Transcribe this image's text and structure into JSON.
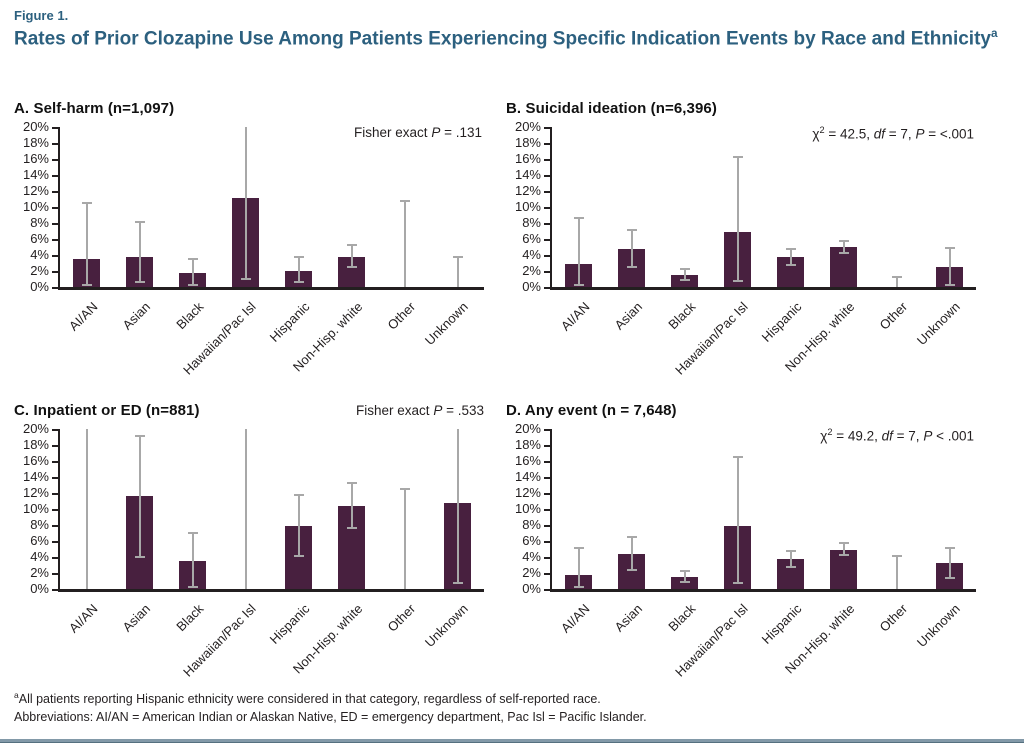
{
  "page": {
    "figure_label": "Figure 1.",
    "title": "Rates of Prior Clozapine Use Among Patients Experiencing Specific Indication Events by Race and Ethnicity",
    "title_sup": "a",
    "footnote_sup": "a",
    "footnote1": "All patients reporting Hispanic ethnicity were considered in that category, regardless of self-reported race.",
    "footnote2": "Abbreviations: AI/AN = American Indian or Alaskan Native, ED = emergency department, Pac Isl = Pacific Islander."
  },
  "colors": {
    "bar": "#48203f",
    "error_bar": "#a8a8a8",
    "title_accent": "#2c607f",
    "axis": "#231f20",
    "bottom_rule": "#8299a8"
  },
  "chart_data": [
    {
      "id": "A",
      "type": "bar",
      "title": "A. Self-harm (n=1,097)",
      "stats_in_header": false,
      "annotation_parts": [
        {
          "t": "Fisher exact  "
        },
        {
          "t": "P",
          "i": true
        },
        {
          "t": " = .131"
        }
      ],
      "categories": [
        "AI/AN",
        "Asian",
        "Black",
        "Hawaiian/Pac Isl",
        "Hispanic",
        "Non-Hisp. white",
        "Other",
        "Unknown"
      ],
      "values": [
        3.5,
        3.7,
        1.7,
        11.1,
        2.0,
        3.8,
        0,
        0
      ],
      "error_low": [
        0.2,
        0.6,
        0.2,
        1.0,
        0.6,
        2.5,
        0,
        0
      ],
      "error_high": [
        10.5,
        8.1,
        3.5,
        20,
        3.8,
        5.2,
        10.8,
        3.8
      ],
      "ylim": [
        0,
        20
      ],
      "y_tick_step": 2,
      "y_tick_suffix": "%"
    },
    {
      "id": "B",
      "type": "bar",
      "title": "B. Suicidal ideation (n=6,396)",
      "stats_in_header": false,
      "annotation_parts": [
        {
          "t": "χ"
        },
        {
          "t": "2",
          "sup": true
        },
        {
          "t": " = 42.5, "
        },
        {
          "t": "df",
          "i": true
        },
        {
          "t": " = 7, "
        },
        {
          "t": "P",
          "i": true
        },
        {
          "t": " = <.001"
        }
      ],
      "categories": [
        "AI/AN",
        "Asian",
        "Black",
        "Hawaiian/Pac Isl",
        "Hispanic",
        "Non-Hisp. white",
        "Other",
        "Unknown"
      ],
      "values": [
        2.9,
        4.7,
        1.5,
        6.9,
        3.7,
        5.0,
        0,
        2.5
      ],
      "error_low": [
        0.3,
        2.5,
        0.9,
        0.8,
        2.7,
        4.2,
        0,
        0.2
      ],
      "error_high": [
        8.6,
        7.1,
        2.3,
        16.2,
        4.8,
        5.8,
        1.2,
        4.9
      ],
      "ylim": [
        0,
        20
      ],
      "y_tick_step": 2,
      "y_tick_suffix": "%"
    },
    {
      "id": "C",
      "type": "bar",
      "title": "C. Inpatient or ED (n=881)",
      "stats_in_header": true,
      "annotation_parts": [
        {
          "t": "Fisher exact  "
        },
        {
          "t": "P",
          "i": true
        },
        {
          "t": " = .533"
        }
      ],
      "categories": [
        "AI/AN",
        "Asian",
        "Black",
        "Hawaiian/Pac Isl",
        "Hispanic",
        "Non-Hisp. white",
        "Other",
        "Unknown"
      ],
      "values": [
        0,
        11.6,
        3.5,
        0,
        7.9,
        10.4,
        0,
        10.8
      ],
      "error_low": [
        0,
        4.0,
        0.2,
        0,
        4.1,
        7.6,
        0,
        0.8
      ],
      "error_high": [
        20,
        19.1,
        7.0,
        20,
        11.7,
        13.3,
        12.5,
        20
      ],
      "ylim": [
        0,
        20
      ],
      "y_tick_step": 2,
      "y_tick_suffix": "%"
    },
    {
      "id": "D",
      "type": "bar",
      "title": "D. Any event (n = 7,648)",
      "stats_in_header": false,
      "annotation_parts": [
        {
          "t": "χ"
        },
        {
          "t": "2",
          "sup": true
        },
        {
          "t": " = 49.2, "
        },
        {
          "t": "df",
          "i": true
        },
        {
          "t": " = 7, "
        },
        {
          "t": "P",
          "i": true
        },
        {
          "t": " < .001"
        }
      ],
      "categories": [
        "AI/AN",
        "Asian",
        "Black",
        "Hawaiian/Pac Isl",
        "Hispanic",
        "Non-Hisp. white",
        "Other",
        "Unknown"
      ],
      "values": [
        1.7,
        4.4,
        1.5,
        7.9,
        3.7,
        4.9,
        0,
        3.2
      ],
      "error_low": [
        0.2,
        2.4,
        0.9,
        0.8,
        2.8,
        4.2,
        0,
        1.4
      ],
      "error_high": [
        5.1,
        6.5,
        2.2,
        16.5,
        4.8,
        5.7,
        4.1,
        5.1
      ],
      "ylim": [
        0,
        20
      ],
      "y_tick_step": 2,
      "y_tick_suffix": "%"
    }
  ]
}
